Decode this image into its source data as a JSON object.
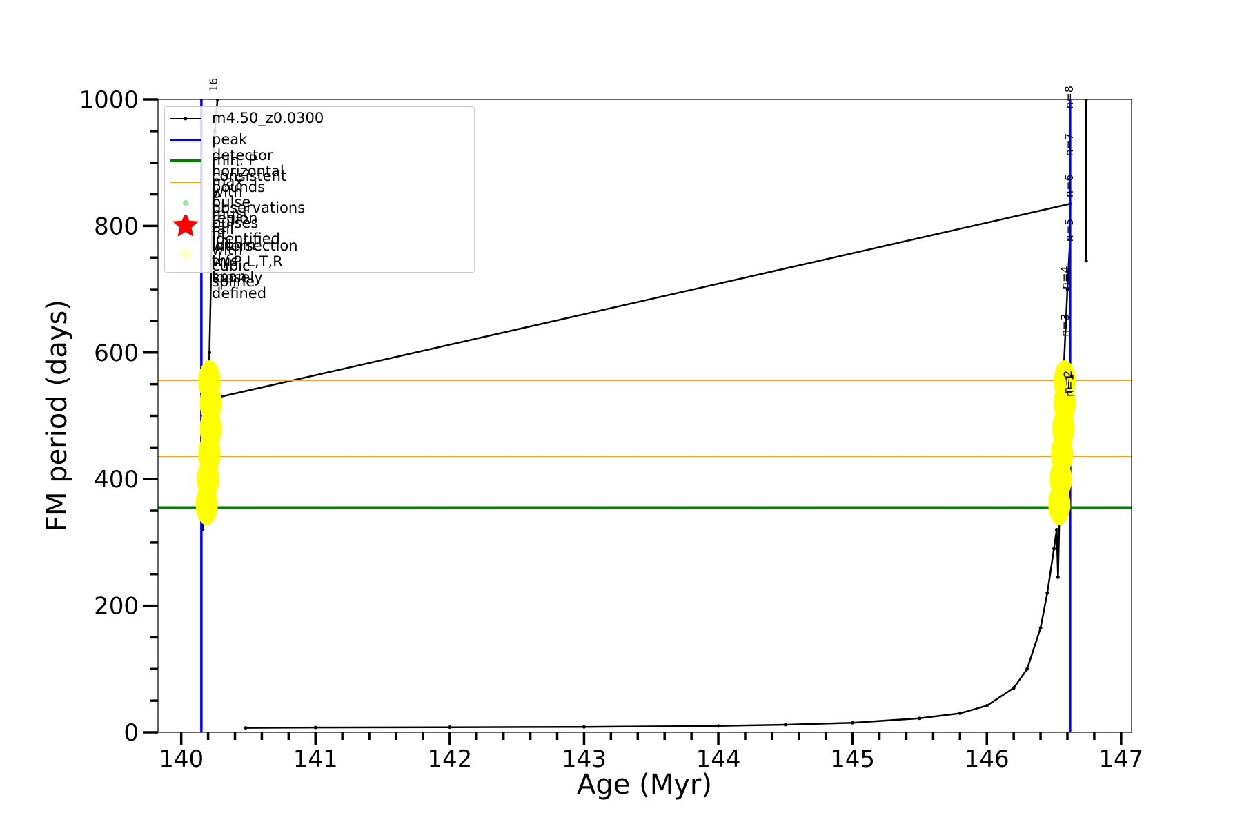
{
  "chart_data": {
    "type": "line",
    "x_label": "Age (Myr)",
    "y_label": "FM period (days)",
    "xlim": [
      139.827,
      147.078
    ],
    "ylim": [
      0,
      1000
    ],
    "xticks": [
      140,
      141,
      142,
      143,
      144,
      145,
      146,
      147
    ],
    "xminorticks": [
      140.2,
      140.4,
      140.6,
      140.8,
      141.2,
      141.4,
      141.6,
      141.8,
      142.2,
      142.4,
      142.6,
      142.8,
      143.2,
      143.4,
      143.6,
      143.8,
      144.2,
      144.4,
      144.6,
      144.8,
      145.2,
      145.4,
      145.6,
      145.8,
      146.2,
      146.4,
      146.6,
      146.8,
      147.0
    ],
    "yticks": [
      0,
      200,
      400,
      600,
      800,
      1000
    ],
    "yminorticks": [
      50,
      100,
      150,
      250,
      300,
      350,
      450,
      500,
      550,
      650,
      700,
      750,
      850,
      900,
      950
    ],
    "grid": false,
    "legend": "upper left",
    "series": [
      {
        "name": "m4.50_z0.0300",
        "style": "line",
        "color": "#000000",
        "x": [
          140.16,
          140.19,
          140.21,
          140.23,
          140.25,
          140.27,
          140.28,
          140.29,
          146.62,
          146.63,
          140.48,
          141,
          142,
          143,
          144,
          144.5,
          145,
          145.5,
          145.8,
          146,
          146.2,
          146.3,
          146.4,
          146.45,
          146.5,
          146.52,
          146.53,
          146.55,
          146.57,
          146.6,
          146.62,
          146.7,
          146.74,
          146.74
        ],
        "values": [
          320,
          420,
          600,
          800,
          950,
          1000,
          null,
          530,
          835,
          null,
          7,
          7.5,
          8,
          8.5,
          10,
          12,
          15,
          22,
          30,
          42,
          70,
          100,
          165,
          220,
          290,
          320,
          245,
          430,
          560,
          700,
          780,
          null,
          745,
          1000
        ]
      },
      {
        "name": "peak detector horizontal bounds",
        "style": "vline",
        "color": "#0000ff",
        "x": [
          140.15,
          146.62
        ]
      },
      {
        "name": "min. P consistent with observations",
        "style": "hline",
        "color": "#008000",
        "values": [
          355
        ]
      },
      {
        "name": "max. P must fall within this span",
        "style": "hline",
        "color": "#ffa500",
        "values": [
          436,
          556
        ]
      },
      {
        "name": "pulse region fit with cubic spline",
        "style": "points",
        "color": "#90ee90",
        "x": [],
        "values": []
      },
      {
        "name": "pulses identified",
        "style": "star",
        "color": "#ff0000",
        "x": [],
        "values": []
      },
      {
        "name": "intersection w/ P,L,T,R\nloosely defined",
        "style": "blob",
        "color": "#ffff00",
        "x": [
          140.19,
          140.2,
          140.21,
          140.22,
          140.22,
          140.21,
          146.54,
          146.55,
          146.56,
          146.57,
          146.58,
          146.58
        ],
        "values": [
          360,
          400,
          440,
          480,
          520,
          555,
          360,
          400,
          440,
          480,
          520,
          555
        ]
      }
    ],
    "annotations": [
      "16",
      "n=8",
      "n=7",
      "n=6",
      "n=5",
      "n=4",
      "n=3",
      "n=2",
      "n=1"
    ]
  }
}
